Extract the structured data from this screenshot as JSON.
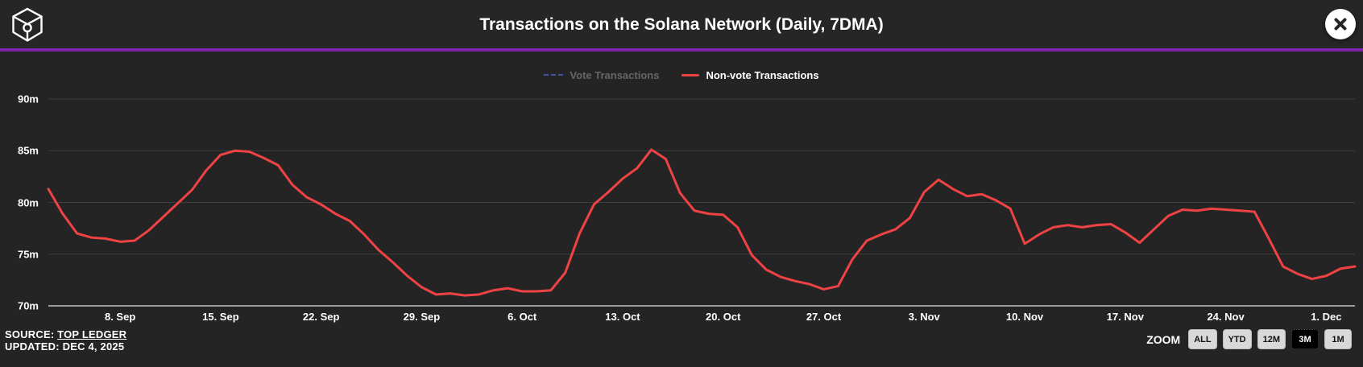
{
  "header": {
    "title": "Transactions on the Solana Network (Daily, 7DMA)"
  },
  "icons": {
    "logo": "cube-wireframe-with-ring",
    "close": "close-x-in-circle"
  },
  "theme": {
    "background": "#242424",
    "accent_purple": "#7d22ad",
    "grid_color": "#3d3d3d",
    "axis_line_color": "#999999",
    "text_color": "#ffffff"
  },
  "legend": {
    "items": [
      {
        "label": "Vote Transactions",
        "color": "#4a5fc7",
        "marker": "dashed",
        "state": "disabled"
      },
      {
        "label": "Non-vote Transactions",
        "color": "#ef4245",
        "marker": "solid",
        "state": "active"
      }
    ]
  },
  "footer": {
    "source_prefix": "SOURCE:",
    "source_link": "TOP LEDGER",
    "updated": "UPDATED: DEC 4, 2025"
  },
  "zoom_controls": {
    "label": "ZOOM",
    "options": [
      {
        "label": "ALL",
        "active": false
      },
      {
        "label": "YTD",
        "active": false
      },
      {
        "label": "12M",
        "active": false
      },
      {
        "label": "3M",
        "active": true
      },
      {
        "label": "1M",
        "active": false
      }
    ]
  },
  "chart_data": {
    "type": "line",
    "title": "Transactions on the Solana Network (Daily, 7DMA)",
    "xlabel": "",
    "ylabel": "",
    "ylim": [
      70,
      90
    ],
    "y_unit": "m",
    "y_ticks": [
      "70m",
      "75m",
      "80m",
      "85m",
      "90m"
    ],
    "y_tick_values": [
      70,
      75,
      80,
      85,
      90
    ],
    "x_range_note": "daily points, Sep 3 2025 - Dec 3 2025",
    "x_tick_labels": [
      "8. Sep",
      "15. Sep",
      "22. Sep",
      "29. Sep",
      "6. Oct",
      "13. Oct",
      "20. Oct",
      "27. Oct",
      "3. Nov",
      "10. Nov",
      "17. Nov",
      "24. Nov",
      "1. Dec"
    ],
    "x_tick_indices": [
      5,
      12,
      19,
      26,
      33,
      40,
      47,
      54,
      61,
      68,
      75,
      82,
      89
    ],
    "grid": "horizontal",
    "legend_position": "top-center",
    "series": [
      {
        "name": "Vote Transactions",
        "color": "#4a5fc7",
        "line_style": "dashed",
        "visible": false,
        "values": []
      },
      {
        "name": "Non-vote Transactions",
        "color": "#ef4245",
        "line_style": "solid",
        "visible": true,
        "values": [
          81.3,
          78.9,
          77.0,
          76.6,
          76.5,
          76.2,
          76.3,
          77.3,
          78.6,
          79.9,
          81.2,
          83.1,
          84.6,
          85.0,
          84.9,
          84.3,
          83.6,
          81.7,
          80.5,
          79.8,
          78.9,
          78.2,
          76.9,
          75.4,
          74.2,
          72.9,
          71.8,
          71.1,
          71.2,
          71.0,
          71.1,
          71.5,
          71.7,
          71.4,
          71.4,
          71.5,
          73.2,
          77.0,
          79.8,
          81.0,
          82.3,
          83.3,
          85.1,
          84.2,
          80.9,
          79.2,
          78.9,
          78.8,
          77.6,
          74.9,
          73.5,
          72.8,
          72.4,
          72.1,
          71.6,
          71.9,
          74.5,
          76.3,
          76.9,
          77.4,
          78.5,
          81.0,
          82.2,
          81.3,
          80.6,
          80.8,
          80.2,
          79.4,
          76.0,
          76.9,
          77.6,
          77.8,
          77.6,
          77.8,
          77.9,
          77.1,
          76.1,
          77.4,
          78.7,
          79.3,
          79.2,
          79.4,
          79.3,
          79.2,
          79.1,
          76.5,
          73.8,
          73.1,
          72.6,
          72.9,
          73.6,
          73.8
        ]
      }
    ]
  }
}
